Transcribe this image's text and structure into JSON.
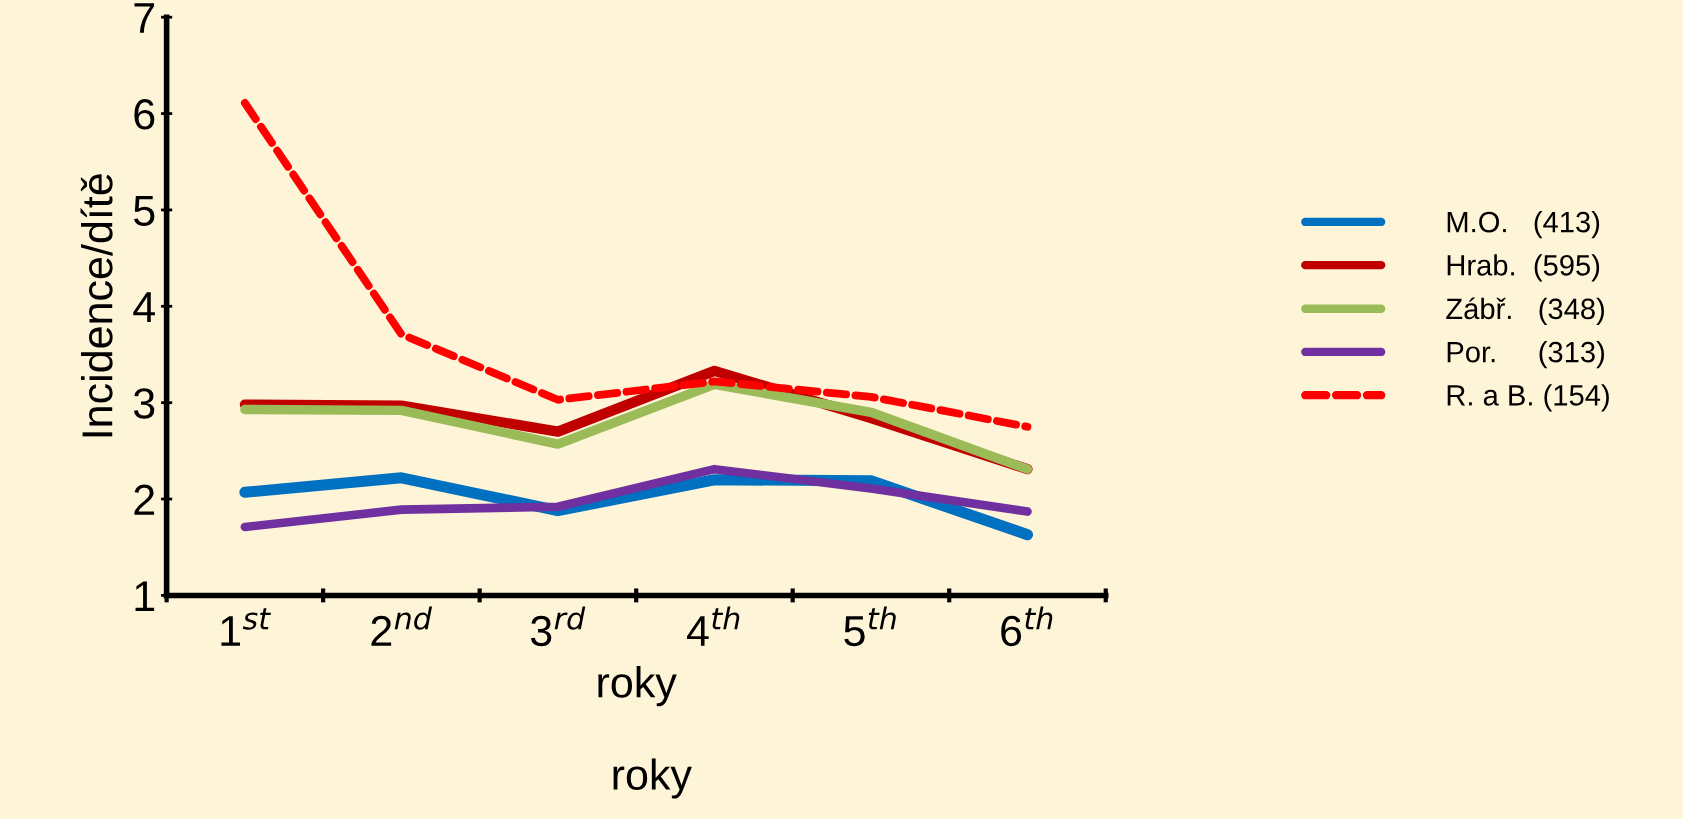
{
  "chart_data": {
    "type": "line",
    "xlabel": "roky",
    "ylabel": "Incidence/dítě",
    "annotations": [
      "roky"
    ],
    "categories": [
      "1$^{st}$",
      "2$^{nd}$",
      "3$^{rd}$",
      "4$^{th}$",
      "5$^{th}$",
      "6$^{th}$"
    ],
    "ylim": [
      1,
      7
    ],
    "yticks": [
      1,
      2,
      3,
      4,
      5,
      6,
      7
    ],
    "grid": false,
    "legend": "right",
    "marker": "none",
    "series": [
      {
        "name": "M.O.   (413)",
        "color": "#0070c0",
        "values": [
          2.07,
          2.22,
          1.88,
          2.2,
          2.19,
          1.63
        ]
      },
      {
        "name": "Hrab.  (595)",
        "color": "#c00000",
        "values": [
          2.98,
          2.97,
          2.7,
          3.33,
          2.84,
          2.31
        ]
      },
      {
        "name": "Zábř.   (348)",
        "color": "#9bbb59",
        "values": [
          2.93,
          2.92,
          2.57,
          3.19,
          2.9,
          2.31
        ]
      },
      {
        "name": "Por.     (313)",
        "color": "#7030a0",
        "values": [
          1.71,
          1.89,
          1.92,
          2.31,
          2.11,
          1.87
        ]
      },
      {
        "name": "R. a B. (154)",
        "color": "#ff0000",
        "line_style": "dashed",
        "values": [
          6.11,
          3.71,
          3.03,
          3.22,
          3.06,
          2.75
        ]
      }
    ]
  }
}
